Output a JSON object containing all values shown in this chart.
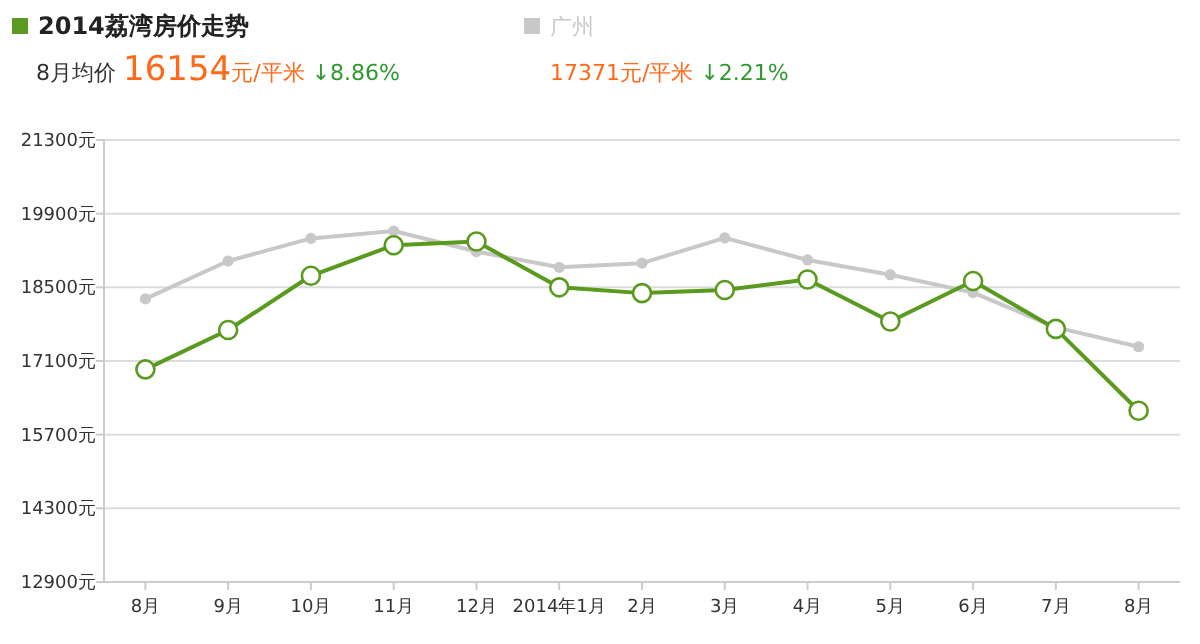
{
  "chart_data": {
    "type": "line",
    "legend": "top",
    "grid": "y",
    "marker": "circle",
    "line_style": "solid",
    "categories": [
      "8月",
      "9月",
      "10月",
      "11月",
      "12月",
      "2014年1月",
      "2月",
      "3月",
      "4月",
      "5月",
      "6月",
      "7月",
      "8月"
    ],
    "series": [
      {
        "name": "2014荔湾房价走势",
        "color": "#5a9a1e",
        "values": [
          16940,
          17690,
          18720,
          19300,
          19370,
          18500,
          18390,
          18450,
          18650,
          17850,
          18620,
          17710,
          16154
        ]
      },
      {
        "name": "广州",
        "color": "#c8c8c8",
        "values": [
          18280,
          19000,
          19430,
          19570,
          19180,
          18880,
          18960,
          19440,
          19020,
          18740,
          18400,
          17740,
          17371
        ]
      }
    ],
    "ylim": [
      12900,
      21300
    ],
    "yticks": [
      {
        "value": 12900,
        "label": "12900元"
      },
      {
        "value": 14300,
        "label": "14300元"
      },
      {
        "value": 15700,
        "label": "15700元"
      },
      {
        "value": 17100,
        "label": "17100元"
      },
      {
        "value": 18500,
        "label": "18500元"
      },
      {
        "value": 19900,
        "label": "19900元"
      },
      {
        "value": 21300,
        "label": "21300元"
      }
    ],
    "annotations": [
      "8月均价 16154元/平米 ↓8.86%",
      "17371元/平米 ↓2.21%"
    ]
  }
}
